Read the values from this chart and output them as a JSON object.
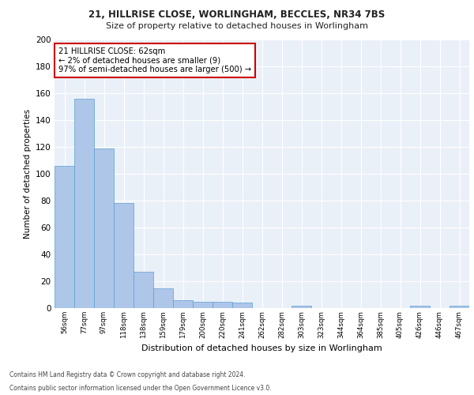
{
  "title1": "21, HILLRISE CLOSE, WORLINGHAM, BECCLES, NR34 7BS",
  "title2": "Size of property relative to detached houses in Worlingham",
  "xlabel": "Distribution of detached houses by size in Worlingham",
  "ylabel": "Number of detached properties",
  "bar_color": "#aec6e8",
  "bar_edge_color": "#5a9fd4",
  "background_color": "#eaf0f8",
  "grid_color": "#ffffff",
  "categories": [
    "56sqm",
    "77sqm",
    "97sqm",
    "118sqm",
    "138sqm",
    "159sqm",
    "179sqm",
    "200sqm",
    "220sqm",
    "241sqm",
    "262sqm",
    "282sqm",
    "303sqm",
    "323sqm",
    "344sqm",
    "364sqm",
    "385sqm",
    "405sqm",
    "426sqm",
    "446sqm",
    "467sqm"
  ],
  "values": [
    106,
    156,
    119,
    78,
    27,
    15,
    6,
    5,
    5,
    4,
    0,
    0,
    2,
    0,
    0,
    0,
    0,
    0,
    2,
    0,
    2
  ],
  "ylim": [
    0,
    200
  ],
  "yticks": [
    0,
    20,
    40,
    60,
    80,
    100,
    120,
    140,
    160,
    180,
    200
  ],
  "annotation_text": "21 HILLRISE CLOSE: 62sqm\n← 2% of detached houses are smaller (9)\n97% of semi-detached houses are larger (500) →",
  "annotation_box_color": "#ffffff",
  "annotation_border_color": "#cc0000",
  "footnote1": "Contains HM Land Registry data © Crown copyright and database right 2024.",
  "footnote2": "Contains public sector information licensed under the Open Government Licence v3.0."
}
